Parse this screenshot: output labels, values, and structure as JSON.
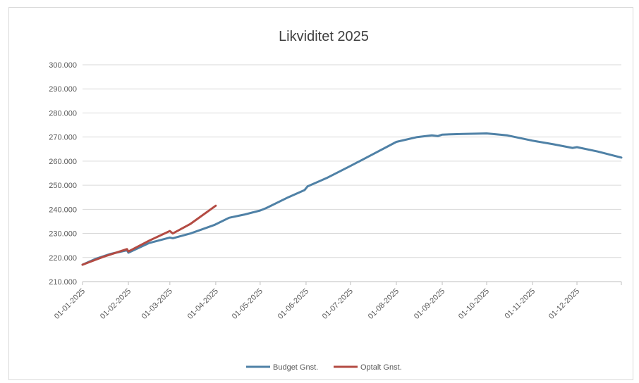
{
  "chart_data": {
    "type": "line",
    "title": "Likviditet 2025",
    "xlabel": "",
    "ylabel": "",
    "ylim": [
      210000,
      300000
    ],
    "yticks": [
      "210.000",
      "220.000",
      "230.000",
      "240.000",
      "250.000",
      "260.000",
      "270.000",
      "280.000",
      "290.000",
      "300.000"
    ],
    "xticks": [
      "01-01-2025",
      "01-02-2025",
      "01-03-2025",
      "01-04-2025",
      "01-05-2025",
      "01-06-2025",
      "01-07-2025",
      "01-08-2025",
      "01-09-2025",
      "01-10-2025",
      "01-11-2025",
      "01-12-2025"
    ],
    "x_range": [
      "2025-01-01",
      "2025-12-31"
    ],
    "grid": true,
    "legend_position": "bottom",
    "series": [
      {
        "name": "Budget Gnst.",
        "color": "#4f81a6",
        "points": [
          [
            "2025-01-01",
            217000
          ],
          [
            "2025-01-10",
            219500
          ],
          [
            "2025-01-20",
            221500
          ],
          [
            "2025-01-31",
            223000
          ],
          [
            "2025-02-01",
            222000
          ],
          [
            "2025-02-15",
            226000
          ],
          [
            "2025-03-01",
            228300
          ],
          [
            "2025-03-03",
            228000
          ],
          [
            "2025-03-15",
            230000
          ],
          [
            "2025-03-31",
            233500
          ],
          [
            "2025-04-10",
            236500
          ],
          [
            "2025-04-20",
            237800
          ],
          [
            "2025-05-01",
            239500
          ],
          [
            "2025-05-05",
            240500
          ],
          [
            "2025-05-20",
            245000
          ],
          [
            "2025-05-31",
            248000
          ],
          [
            "2025-06-02",
            249500
          ],
          [
            "2025-06-15",
            253000
          ],
          [
            "2025-07-01",
            258000
          ],
          [
            "2025-07-15",
            262500
          ],
          [
            "2025-08-01",
            268000
          ],
          [
            "2025-08-15",
            270000
          ],
          [
            "2025-08-25",
            270700
          ],
          [
            "2025-08-29",
            270400
          ],
          [
            "2025-09-01",
            271000
          ],
          [
            "2025-09-15",
            271300
          ],
          [
            "2025-10-01",
            271500
          ],
          [
            "2025-10-15",
            270700
          ],
          [
            "2025-11-01",
            268500
          ],
          [
            "2025-11-15",
            267000
          ],
          [
            "2025-11-28",
            265500
          ],
          [
            "2025-12-01",
            265800
          ],
          [
            "2025-12-15",
            264000
          ],
          [
            "2025-12-31",
            261500
          ]
        ]
      },
      {
        "name": "Optalt Gnst.",
        "color": "#b34b43",
        "points": [
          [
            "2025-01-01",
            217000
          ],
          [
            "2025-01-15",
            220300
          ],
          [
            "2025-01-31",
            223500
          ],
          [
            "2025-02-01",
            222500
          ],
          [
            "2025-02-15",
            227000
          ],
          [
            "2025-03-01",
            231000
          ],
          [
            "2025-03-03",
            230000
          ],
          [
            "2025-03-15",
            234000
          ],
          [
            "2025-04-01",
            241500
          ]
        ]
      }
    ]
  }
}
